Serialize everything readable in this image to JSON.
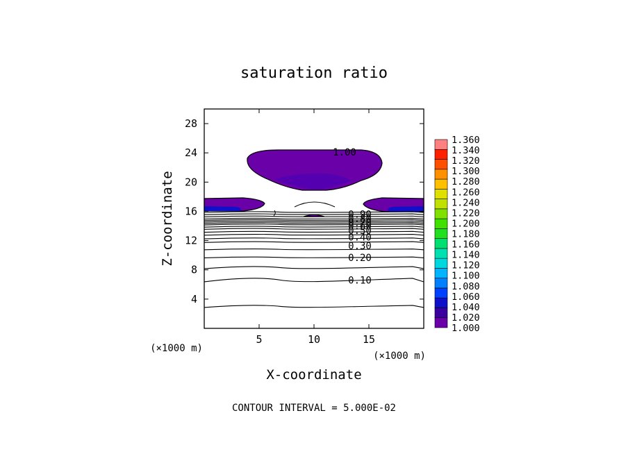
{
  "chart_data": {
    "type": "contour",
    "title": "saturation ratio",
    "xlabel": "X-coordinate",
    "ylabel": "Z-coordinate",
    "x_unit": "(×1000 m)",
    "z_unit": "(×1000 m)",
    "footer": "CONTOUR INTERVAL = 5.000E-02",
    "xlim": [
      0,
      20
    ],
    "ylim": [
      0,
      30
    ],
    "x_ticks": [
      "5",
      "10",
      "15"
    ],
    "y_ticks": [
      "4",
      "8",
      "12",
      "16",
      "20",
      "24",
      "28"
    ],
    "contour_labels": [
      "1.00",
      "0.90",
      "0.80",
      "0.70",
      "0.60",
      "0.50",
      "0.40",
      "0.30",
      "0.20",
      "0.10"
    ],
    "contour_levels": [
      {
        "level": 0.05,
        "z": 3.0
      },
      {
        "level": 0.1,
        "z": 6.6
      },
      {
        "level": 0.15,
        "z": 8.3
      },
      {
        "level": 0.2,
        "z": 9.7
      },
      {
        "level": 0.25,
        "z": 10.8
      },
      {
        "level": 0.3,
        "z": 11.8
      },
      {
        "level": 0.35,
        "z": 12.3
      },
      {
        "level": 0.4,
        "z": 12.8
      },
      {
        "level": 0.45,
        "z": 13.2
      },
      {
        "level": 0.5,
        "z": 13.6
      },
      {
        "level": 0.55,
        "z": 13.9
      },
      {
        "level": 0.6,
        "z": 14.2
      },
      {
        "level": 0.65,
        "z": 14.4
      },
      {
        "level": 0.7,
        "z": 14.6
      },
      {
        "level": 0.75,
        "z": 14.8
      },
      {
        "level": 0.8,
        "z": 15.0
      },
      {
        "level": 0.85,
        "z": 15.3
      },
      {
        "level": 0.9,
        "z": 15.6
      },
      {
        "level": 0.95,
        "z": 15.9
      }
    ],
    "colorbar": {
      "levels": [
        "1.360",
        "1.340",
        "1.320",
        "1.300",
        "1.280",
        "1.260",
        "1.240",
        "1.220",
        "1.200",
        "1.180",
        "1.160",
        "1.140",
        "1.120",
        "1.100",
        "1.080",
        "1.060",
        "1.040",
        "1.020",
        "1.000"
      ],
      "colors": [
        "#6a00a8",
        "#3a00a0",
        "#1010c8",
        "#0040ff",
        "#0080ff",
        "#00b4ff",
        "#00d8e0",
        "#00e0b0",
        "#00e070",
        "#20e020",
        "#40e000",
        "#80e000",
        "#c0e000",
        "#e0e000",
        "#ffc000",
        "#ff9000",
        "#ff5000",
        "#ff2000",
        "#ff8080"
      ]
    }
  }
}
